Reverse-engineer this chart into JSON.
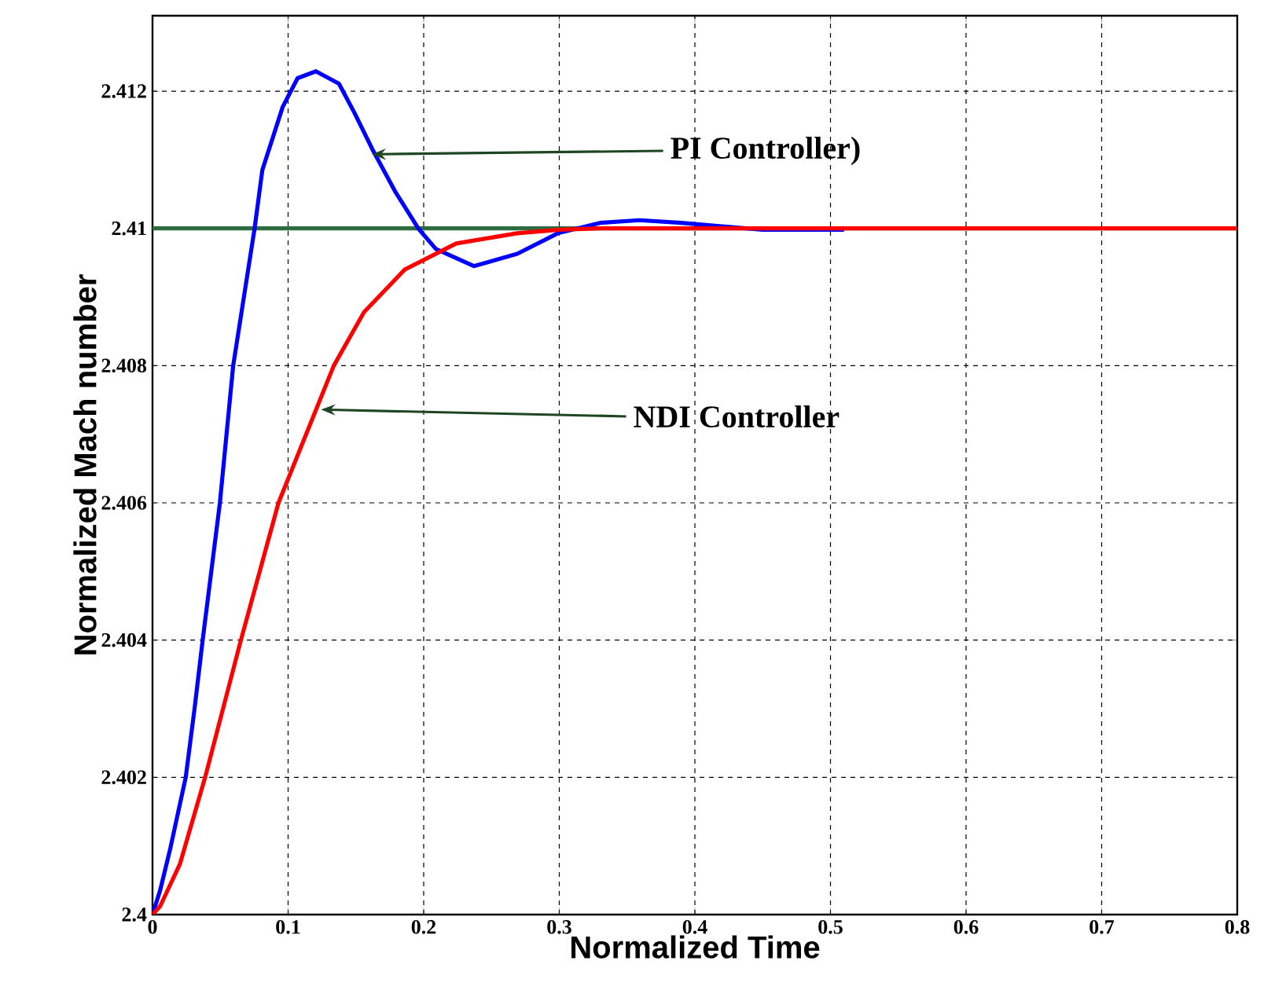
{
  "chart_data": {
    "type": "line",
    "xlabel": "Normalized Time",
    "ylabel": "Normalized Mach number",
    "xlim": [
      0,
      0.8
    ],
    "ylim": [
      2.4,
      2.4131
    ],
    "xticks": [
      0,
      0.1,
      0.2,
      0.3,
      0.4,
      0.5,
      0.6,
      0.7,
      0.8
    ],
    "yticks": [
      2.4,
      2.402,
      2.404,
      2.406,
      2.408,
      2.41,
      2.412
    ],
    "grid": true,
    "line_style": "solid",
    "marker": "none",
    "series": [
      {
        "color": "#0000ff",
        "x": [
          0,
          0.0056,
          0.0132,
          0.0245,
          0.031,
          0.037,
          0.0497,
          0.0595,
          0.0753,
          0.081,
          0.096,
          0.107,
          0.1205,
          0.1375,
          0.1488,
          0.162,
          0.1789,
          0.196,
          0.209,
          0.237,
          0.269,
          0.299,
          0.33,
          0.359,
          0.39,
          0.42,
          0.45,
          0.48,
          0.51
        ],
        "values": [
          2.4,
          2.40035,
          2.40097,
          2.402,
          2.403,
          2.404,
          2.406,
          2.408,
          2.41,
          2.41085,
          2.41177,
          2.41219,
          2.41229,
          2.41211,
          2.41169,
          2.41116,
          2.41054,
          2.41,
          2.4097,
          2.40945,
          2.40963,
          2.40993,
          2.41008,
          2.41012,
          2.41008,
          2.41003,
          2.40998,
          2.40998,
          2.40998
        ]
      },
      {
        "color": "#ff0000",
        "x": [
          0,
          0.0056,
          0.0203,
          0.0388,
          0.0652,
          0.0929,
          0.1337,
          0.156,
          0.186,
          0.224,
          0.269,
          0.3,
          0.33,
          0.8
        ],
        "values": [
          2.4,
          2.40012,
          2.40074,
          2.402,
          2.404,
          2.406,
          2.408,
          2.40878,
          2.4094,
          2.40978,
          2.40993,
          2.40998,
          2.41,
          2.41
        ]
      }
    ],
    "ref_lines": [
      {
        "axis": "y",
        "value": 2.41,
        "color": "#2e6b3f"
      }
    ],
    "annotations": [
      {
        "text": "PI Controller)",
        "x": 0.1616,
        "y": 2.41108
      },
      {
        "text": "NDI Controller",
        "x": 0.1243,
        "y": 2.40736
      }
    ]
  }
}
